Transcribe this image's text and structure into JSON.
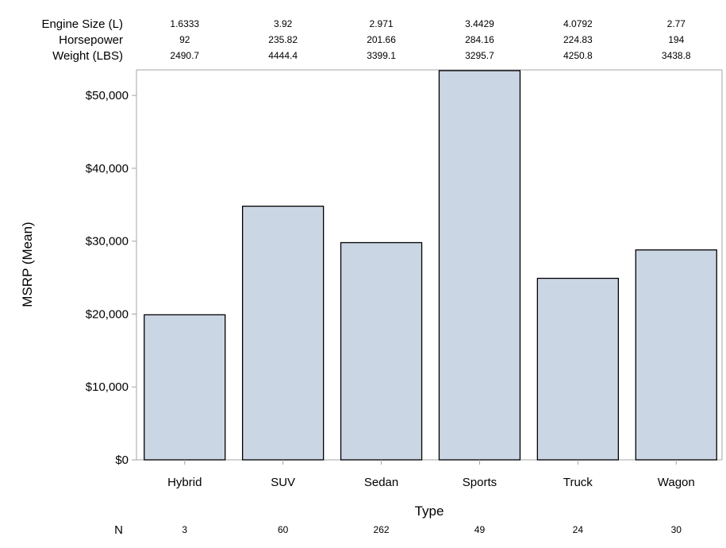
{
  "chart_data": {
    "type": "bar",
    "xlabel": "Type",
    "ylabel": "MSRP (Mean)",
    "ylim": [
      0,
      53500
    ],
    "yticks": [
      0,
      10000,
      20000,
      30000,
      40000,
      50000
    ],
    "ytick_labels": [
      "$0",
      "$10,000",
      "$20,000",
      "$30,000",
      "$40,000",
      "$50,000"
    ],
    "grid": false,
    "categories": [
      "Hybrid",
      "SUV",
      "Sedan",
      "Sports",
      "Truck",
      "Wagon"
    ],
    "values": [
      19900,
      34800,
      29800,
      53400,
      24900,
      28800
    ],
    "bar_fill": "#cbd6e5",
    "bar_stroke": "#000000",
    "axis_color": "#a5a5a5",
    "top_table": [
      {
        "label": "Engine Size (L)",
        "values": [
          "1.6333",
          "3.92",
          "2.971",
          "3.4429",
          "4.0792",
          "2.77"
        ]
      },
      {
        "label": "Horsepower",
        "values": [
          "92",
          "235.82",
          "201.66",
          "284.16",
          "224.83",
          "194"
        ]
      },
      {
        "label": "Weight (LBS)",
        "values": [
          "2490.7",
          "4444.4",
          "3399.1",
          "3295.7",
          "4250.8",
          "3438.8"
        ]
      }
    ],
    "bottom_table": {
      "label": "N",
      "values": [
        "3",
        "60",
        "262",
        "49",
        "24",
        "30"
      ]
    }
  }
}
